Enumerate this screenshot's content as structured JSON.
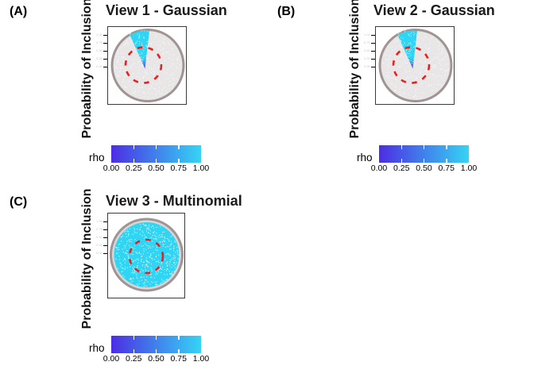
{
  "figure": {
    "background": "#ffffff",
    "panels": [
      {
        "corner_label": "(A)",
        "title": "View 1 - Gaussian",
        "y_axis_label": "Probability of Inclusion",
        "variant": "wedge"
      },
      {
        "corner_label": "(B)",
        "title": "View 2 - Gaussian",
        "y_axis_label": "Probability of Inclusion",
        "variant": "wedge"
      },
      {
        "corner_label": "(C)",
        "title": "View 3 - Multinomial",
        "y_axis_label": "Probability of Inclusion",
        "variant": "full"
      }
    ],
    "legend": {
      "label": "rho",
      "ticks": [
        "0.00",
        "0.25",
        "0.50",
        "0.75",
        "1.00"
      ],
      "gradient_low": "#4b2ee3",
      "gradient_high": "#35d4f4"
    },
    "axis_ticks": [
      "1.00",
      "0.75",
      "0.50",
      "0.25",
      "0.00"
    ],
    "colors": {
      "point_cyan": "#30d5f3",
      "wedge_tip_purple": "#5a45d8",
      "wedge_mid_blue": "#4a86e0",
      "dashed_circle_red": "#eb1f1f",
      "disk_fill": "#e8e6e6",
      "disk_ring": "#a09494",
      "ring_gap_gray": "#d8d6d6",
      "box_border": "#3a3a3a",
      "speckle_white": "#ffffff"
    }
  },
  "chart_data": [
    {
      "type": "scatter",
      "title": "View 1 - Gaussian",
      "ylabel": "Probability of Inclusion",
      "xlabel": "",
      "legend_position": "bottom",
      "colorbar": {
        "label": "rho",
        "tick_labels": [
          "0.00",
          "0.25",
          "0.50",
          "0.75",
          "1.00"
        ],
        "range": [
          0,
          1
        ],
        "low_color": "#4b2ee3",
        "high_color": "#35d4f4"
      },
      "annotations": [
        "circular cloud of simulated points (light gray, rho near 0)",
        "high-rho cyan wedge sector at upper center tapering to purple tip at circle center",
        "red dashed circle outlining central region"
      ]
    },
    {
      "type": "scatter",
      "title": "View 2 - Gaussian",
      "ylabel": "Probability of Inclusion",
      "xlabel": "",
      "legend_position": "bottom",
      "colorbar": {
        "label": "rho",
        "tick_labels": [
          "0.00",
          "0.25",
          "0.50",
          "0.75",
          "1.00"
        ],
        "range": [
          0,
          1
        ],
        "low_color": "#4b2ee3",
        "high_color": "#35d4f4"
      },
      "annotations": [
        "circular cloud of simulated points (light gray, rho near 0)",
        "high-rho cyan wedge sector at upper center tapering to purple tip at circle center",
        "red dashed circle outlining central region"
      ]
    },
    {
      "type": "scatter",
      "title": "View 3 - Multinomial",
      "ylabel": "Probability of Inclusion",
      "xlabel": "",
      "legend_position": "bottom",
      "colorbar": {
        "label": "rho",
        "tick_labels": [
          "0.00",
          "0.25",
          "0.50",
          "0.75",
          "1.00"
        ],
        "range": [
          0,
          1
        ],
        "low_color": "#4b2ee3",
        "high_color": "#35d4f4"
      },
      "annotations": [
        "entire circular cloud of points is high-rho cyan",
        "red dashed circle outlining central region"
      ]
    }
  ]
}
